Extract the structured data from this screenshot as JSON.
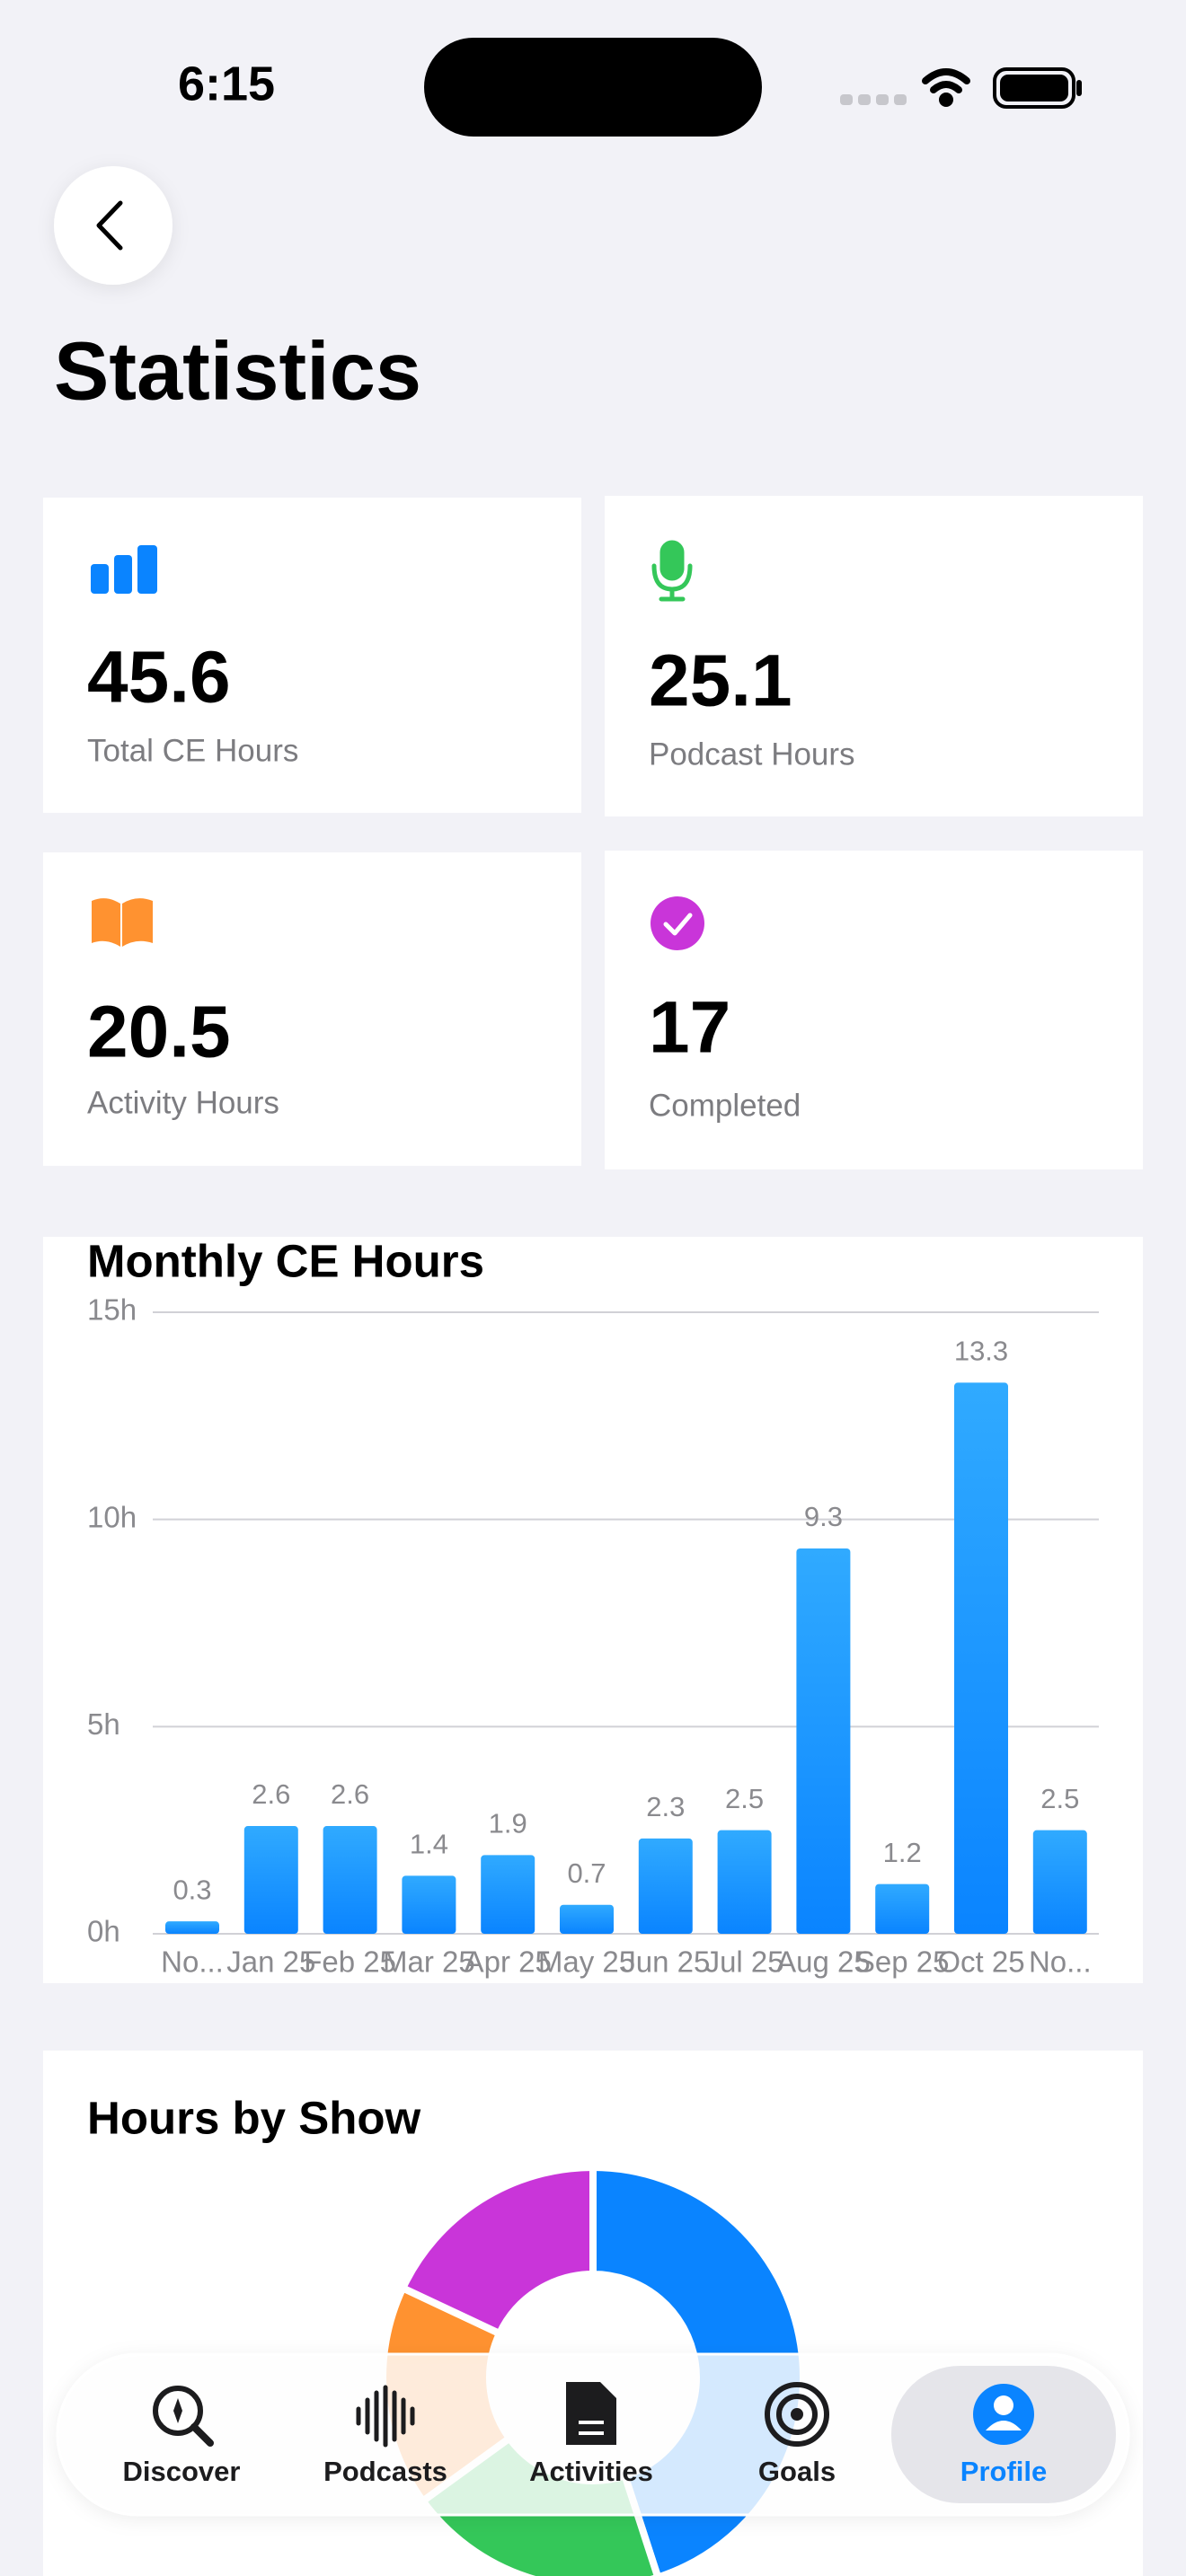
{
  "status_bar": {
    "time": "6:15"
  },
  "header": {
    "title": "Statistics"
  },
  "stats": [
    {
      "value": 45.6,
      "label": "Total CE Hours"
    },
    {
      "value": 25.1,
      "label": "Podcast Hours"
    },
    {
      "value": 20.5,
      "label": "Activity Hours"
    },
    {
      "value": 17,
      "label": "Completed"
    }
  ],
  "chart_data": [
    {
      "type": "bar",
      "title": "Monthly CE Hours",
      "categories": [
        "No...",
        "Jan 25",
        "Feb 25",
        "Mar 25",
        "Apr 25",
        "May 25",
        "Jun 25",
        "Jul 25",
        "Aug 25",
        "Sep 25",
        "Oct 25",
        "No..."
      ],
      "values": [
        0.3,
        2.6,
        2.6,
        1.4,
        1.9,
        0.7,
        2.3,
        2.5,
        9.3,
        1.2,
        13.3,
        2.5
      ],
      "color": "#0a84ff",
      "ylim": [
        0,
        15
      ],
      "yticks": [
        {
          "value": 0,
          "label": "0h"
        },
        {
          "value": 5,
          "label": "5h"
        },
        {
          "value": 10,
          "label": "10h"
        },
        {
          "value": 15,
          "label": "15h"
        }
      ],
      "grid": true
    },
    {
      "type": "pie",
      "title": "Hours by Show",
      "values": [
        45,
        20,
        17,
        18
      ],
      "colors": [
        "#0a84ff",
        "#34c759",
        "#ff9230",
        "#c935d9"
      ]
    }
  ],
  "tab_bar": {
    "items": [
      {
        "label": "Discover",
        "active": false
      },
      {
        "label": "Podcasts",
        "active": false
      },
      {
        "label": "Activities",
        "active": false
      },
      {
        "label": "Goals",
        "active": false
      },
      {
        "label": "Profile",
        "active": true
      }
    ]
  }
}
